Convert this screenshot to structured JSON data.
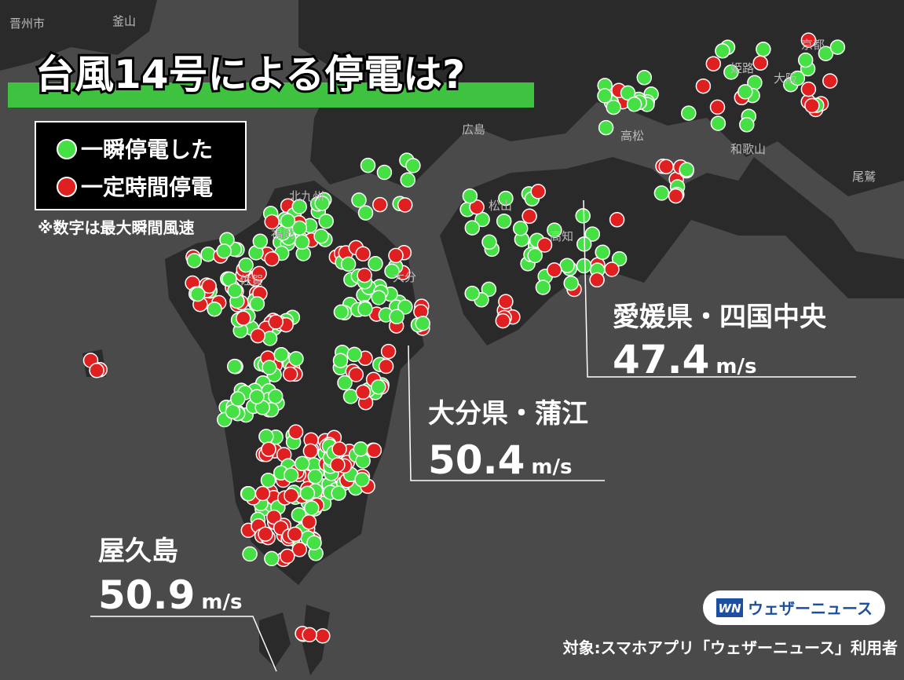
{
  "header": {
    "title": "台風14号による停電は?"
  },
  "legend": {
    "items": [
      {
        "label": "一瞬停電した"
      },
      {
        "label": "一定時間停電"
      }
    ],
    "note": "※数字は最大瞬間風速"
  },
  "places": [
    "晋州市",
    "釜山",
    "広島",
    "京都",
    "姫路",
    "大阪",
    "高松",
    "和歌山",
    "松山",
    "高知",
    "北九州",
    "福岡",
    "佐賀",
    "大分",
    "尾鷲"
  ],
  "callouts": [
    {
      "place": "愛媛県・四国中央",
      "speed": "47.4",
      "unit": "m/s"
    },
    {
      "place": "大分県・蒲江",
      "speed": "50.4",
      "unit": "m/s"
    },
    {
      "place": "屋久島",
      "speed": "50.9",
      "unit": "m/s"
    }
  ],
  "logo": {
    "mark": "WN",
    "name": "ウェザーニュース"
  },
  "footer": "対象:スマホアプリ「ウェザーニュース」利用者"
}
